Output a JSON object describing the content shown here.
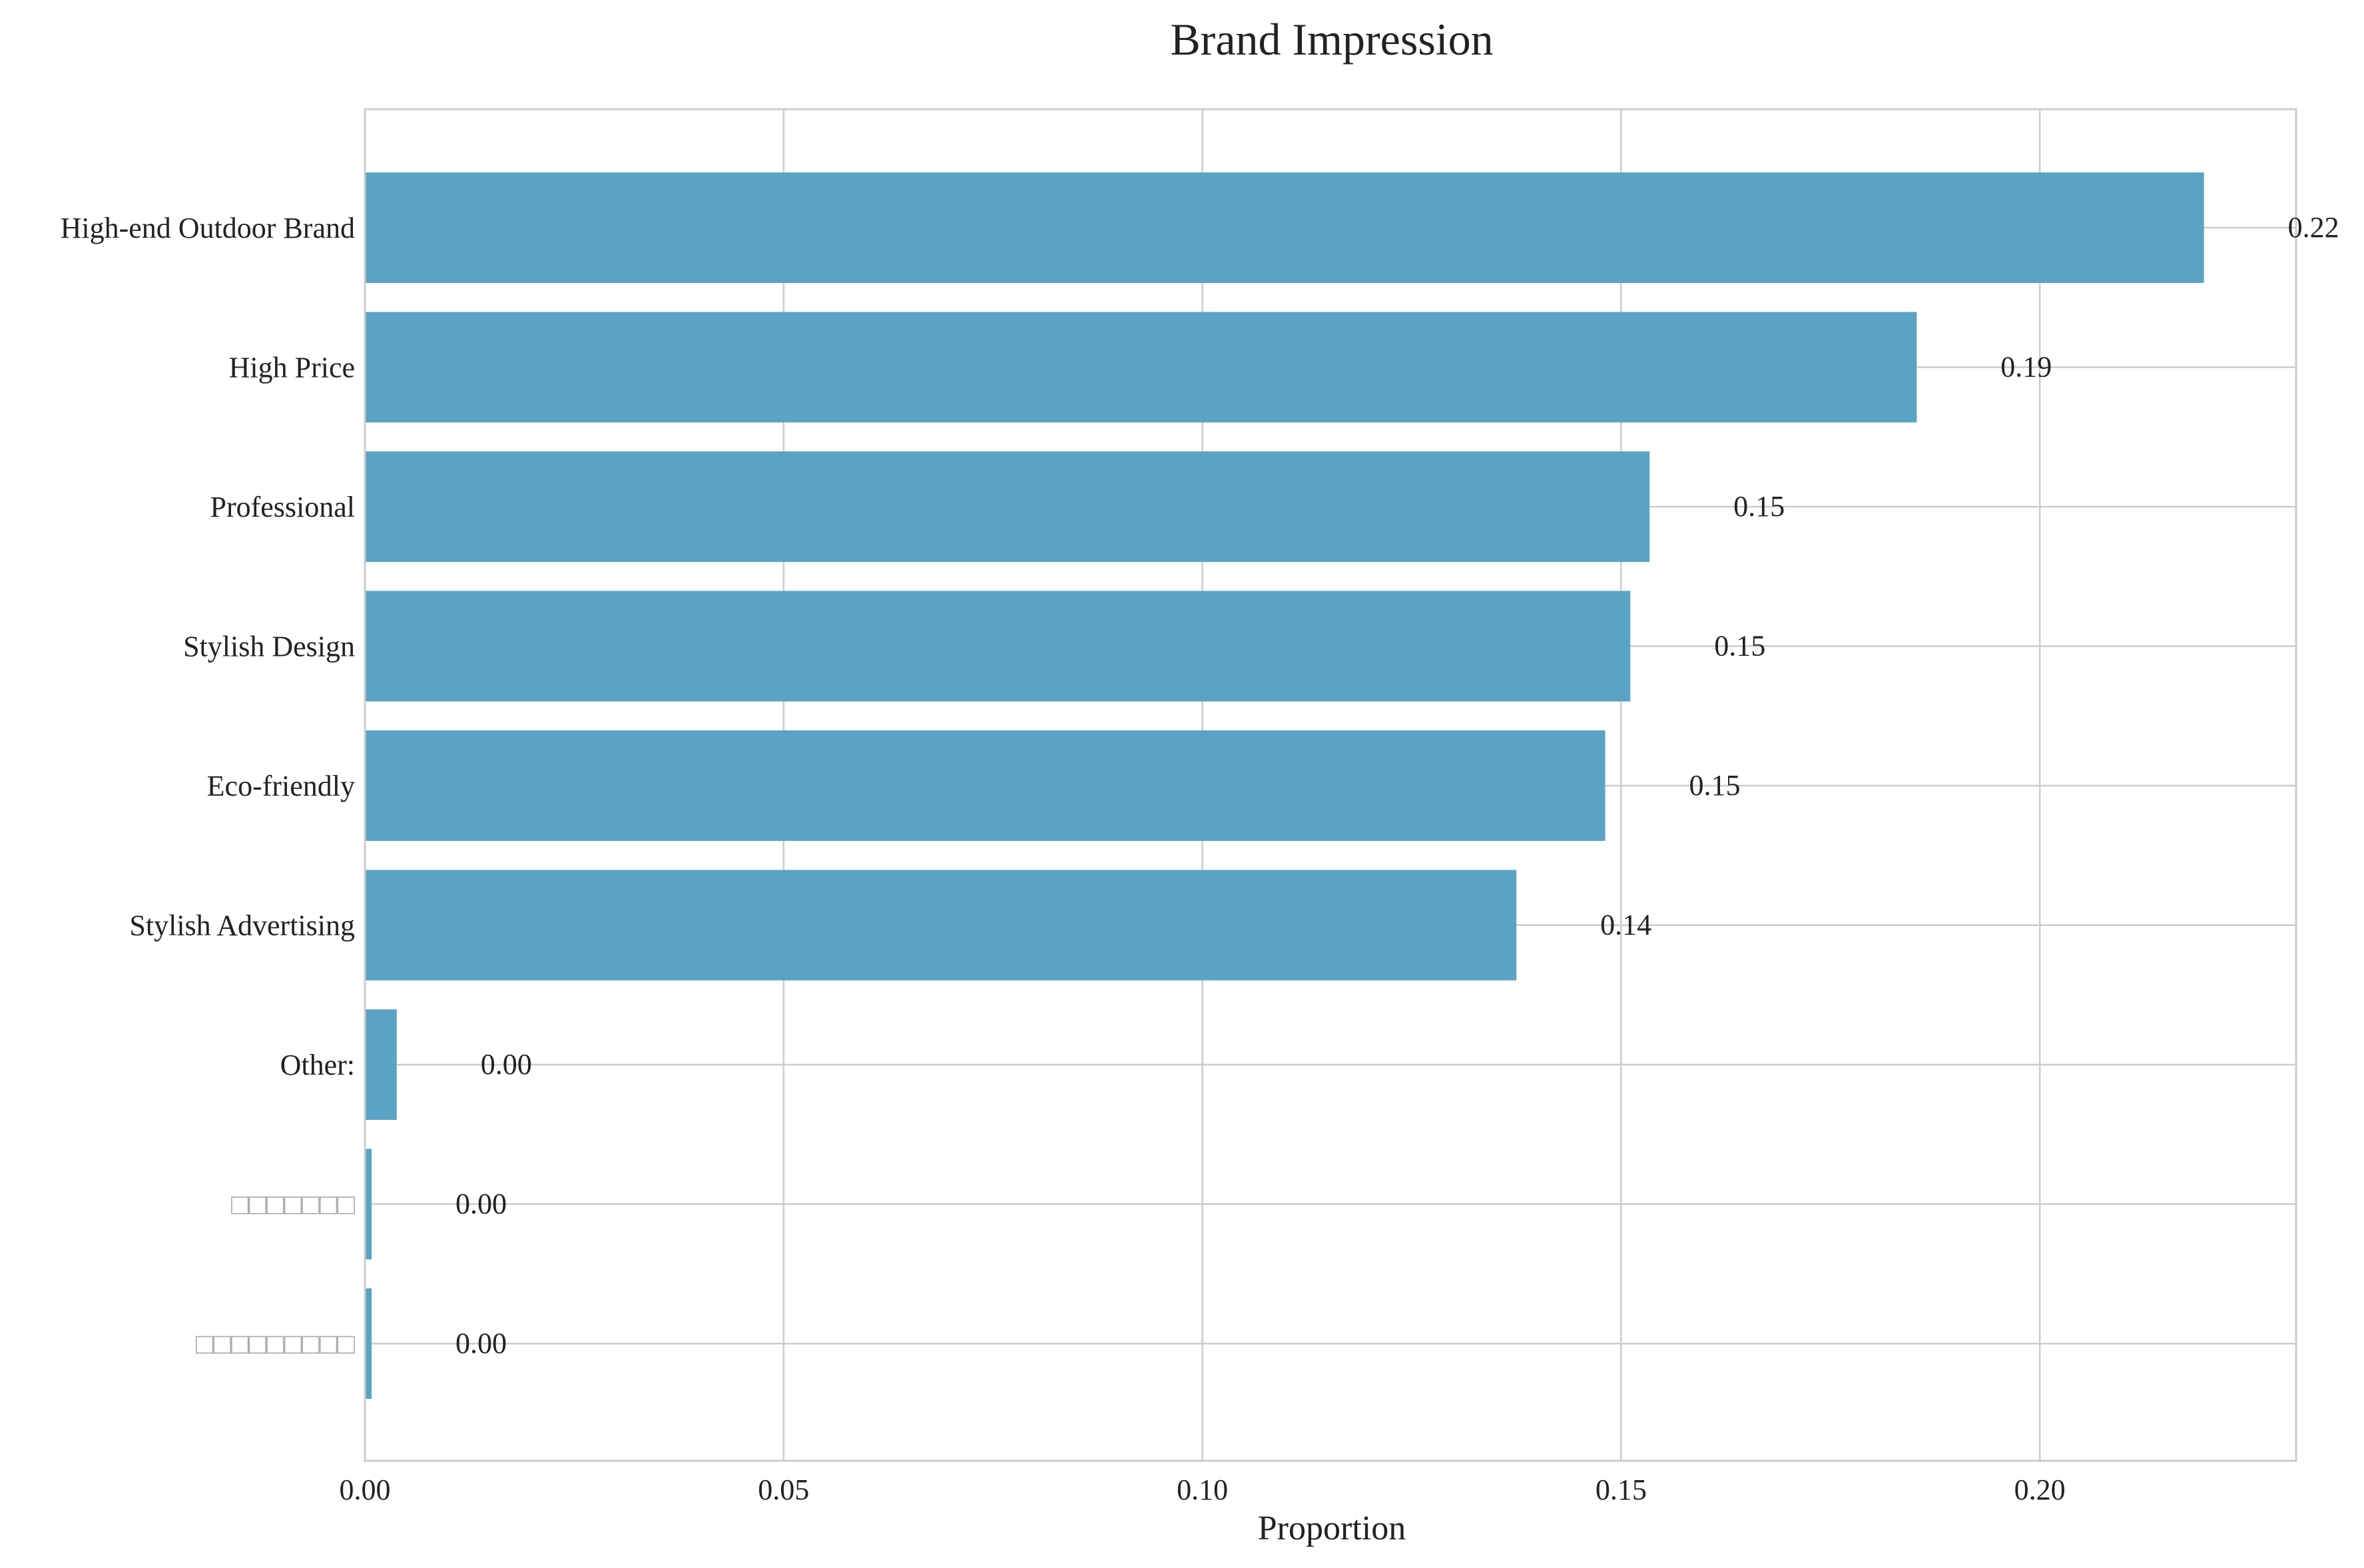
{
  "chart_data": {
    "type": "bar",
    "orientation": "horizontal",
    "title": "Brand Impression",
    "xlabel": "Proportion",
    "ylabel": "",
    "xlim": [
      0,
      0.2306
    ],
    "xticks": [
      "0.00",
      "0.05",
      "0.10",
      "0.15",
      "0.20"
    ],
    "xtick_values": [
      0,
      0.05,
      0.1,
      0.15,
      0.2
    ],
    "grid": true,
    "bar_color": "#5ba3c4",
    "categories": [
      "High-end Outdoor Brand",
      "High Price",
      "Professional",
      "Stylish Design",
      "Eco-friendly",
      "Stylish Advertising",
      "Other:",
      "□□□□□□□",
      "□□□□□□□□□"
    ],
    "values": [
      0.2196,
      0.1853,
      0.1534,
      0.1511,
      0.1481,
      0.1375,
      0.0038,
      0.0008,
      0.0008
    ],
    "data_labels": [
      "0.22",
      "0.19",
      "0.15",
      "0.15",
      "0.15",
      "0.14",
      "0.00",
      "0.00",
      "0.00"
    ]
  }
}
